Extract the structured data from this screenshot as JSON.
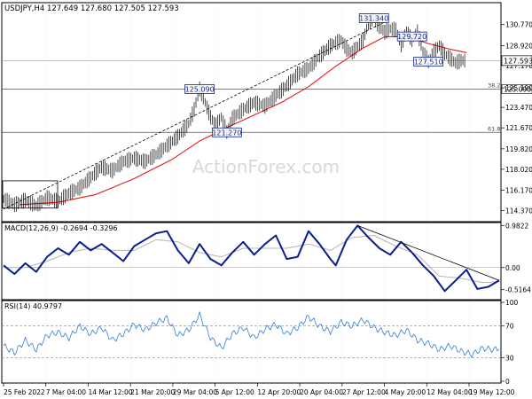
{
  "watermark": "ActionForex.com",
  "colors": {
    "price": "#000000",
    "ma": "#e41a1c",
    "trend": "#000000",
    "macd": "#0a1f8f",
    "signal": "#b4b4b4",
    "rsi": "#2f7ed8",
    "box": "#0a1f8f",
    "grid": "#c8c8c8"
  },
  "chart_data": [
    {
      "type": "line",
      "panel": "price",
      "header": "USDJPY,H4  127.649 127.680 127.505 127.593",
      "last_price_label": "127.593",
      "ylim": [
        113.4,
        132.7
      ],
      "y_ticks": [
        "130.770",
        "128.920",
        "127.170",
        "125.190",
        "123.470",
        "121.670",
        "119.820",
        "118.020",
        "116.170",
        "114.370"
      ],
      "x_ticks": [
        "25 Feb 2022",
        "7 Mar 04:00",
        "14 Mar 12:00",
        "21 Mar 20:00",
        "29 Mar 04:00",
        "5 Apr 12:00",
        "12 Apr 20:00",
        "20 Apr 04:00",
        "27 Apr 12:00",
        "4 May 20:00",
        "12 May 04:00",
        "19 May 12:00"
      ],
      "series": [
        {
          "name": "USDJPY",
          "values": [
            [
              0,
              115.4
            ],
            [
              2,
              114.9
            ],
            [
              4,
              115.3
            ],
            [
              6,
              114.8
            ],
            [
              8,
              115.5
            ],
            [
              10,
              115.2
            ],
            [
              12,
              115.9
            ],
            [
              14,
              116.4
            ],
            [
              16,
              117.3
            ],
            [
              18,
              118.2
            ],
            [
              20,
              117.9
            ],
            [
              22,
              118.7
            ],
            [
              24,
              119.0
            ],
            [
              26,
              118.7
            ],
            [
              28,
              119.3
            ],
            [
              30,
              120.1
            ],
            [
              32,
              120.9
            ],
            [
              34,
              122.0
            ],
            [
              35,
              123.3
            ],
            [
              36,
              125.09
            ],
            [
              37,
              123.9
            ],
            [
              38,
              122.6
            ],
            [
              39,
              121.9
            ],
            [
              40,
              122.6
            ],
            [
              41,
              121.3
            ],
            [
              42,
              122.5
            ],
            [
              44,
              123.3
            ],
            [
              46,
              123.9
            ],
            [
              48,
              123.6
            ],
            [
              50,
              124.5
            ],
            [
              52,
              125.4
            ],
            [
              54,
              126.4
            ],
            [
              56,
              126.9
            ],
            [
              58,
              128.0
            ],
            [
              60,
              128.9
            ],
            [
              62,
              129.4
            ],
            [
              63,
              128.6
            ],
            [
              64,
              128.3
            ],
            [
              66,
              129.4
            ],
            [
              67,
              130.9
            ],
            [
              68,
              131.34
            ],
            [
              69,
              130.6
            ],
            [
              70,
              130.1
            ],
            [
              71,
              130.4
            ],
            [
              72,
              130.3
            ],
            [
              73,
              129.0
            ],
            [
              74,
              130.2
            ],
            [
              75,
              129.4
            ],
            [
              76,
              130.1
            ],
            [
              77,
              128.4
            ],
            [
              78,
              127.51
            ],
            [
              79,
              128.4
            ],
            [
              80,
              128.9
            ],
            [
              81,
              128.2
            ],
            [
              82,
              127.8
            ],
            [
              83,
              127.4
            ],
            [
              84,
              127.6
            ],
            [
              85,
              127.59
            ]
          ]
        },
        {
          "name": "MA",
          "values": [
            [
              3,
              114.9
            ],
            [
              10,
              115.1
            ],
            [
              17,
              115.8
            ],
            [
              24,
              117.2
            ],
            [
              31,
              118.9
            ],
            [
              36,
              120.5
            ],
            [
              41,
              121.7
            ],
            [
              46,
              122.8
            ],
            [
              51,
              123.9
            ],
            [
              56,
              125.3
            ],
            [
              61,
              127.1
            ],
            [
              66,
              128.7
            ],
            [
              70,
              129.7
            ],
            [
              74,
              129.7
            ],
            [
              78,
              129.1
            ],
            [
              82,
              128.6
            ],
            [
              85,
              128.3
            ]
          ]
        },
        {
          "name": "Trendline",
          "values": [
            [
              0,
              114.5
            ],
            [
              70,
              131.0
            ]
          ]
        }
      ],
      "annotations": [
        {
          "label": "125.090",
          "x": 36,
          "y": 125.09
        },
        {
          "label": "121.270",
          "x": 41,
          "y": 121.27
        },
        {
          "label": "131.340",
          "x": 68,
          "y": 131.34
        },
        {
          "label": "129.720",
          "x": 75,
          "y": 129.72
        },
        {
          "label": "127.510",
          "x": 78,
          "y": 127.51
        }
      ],
      "levels": [
        {
          "label": "38.2",
          "value": 125.09,
          "tag": "125.090"
        },
        {
          "label": "61.8",
          "value": 121.27
        }
      ]
    },
    {
      "type": "line",
      "panel": "macd",
      "title": "MACD(12,26,9) -0.2694 -0.3296",
      "ylim": [
        -0.75,
        1.05
      ],
      "y_ticks": [
        "0.9822",
        "0.00",
        "-0.5164"
      ],
      "series": [
        {
          "name": "MACD",
          "values": [
            [
              0,
              0.05
            ],
            [
              2,
              -0.15
            ],
            [
              4,
              0.1
            ],
            [
              6,
              -0.1
            ],
            [
              8,
              0.25
            ],
            [
              10,
              0.45
            ],
            [
              12,
              0.3
            ],
            [
              14,
              0.6
            ],
            [
              16,
              0.4
            ],
            [
              18,
              0.55
            ],
            [
              20,
              0.35
            ],
            [
              22,
              0.15
            ],
            [
              24,
              0.5
            ],
            [
              26,
              0.65
            ],
            [
              28,
              0.8
            ],
            [
              30,
              0.85
            ],
            [
              32,
              0.4
            ],
            [
              34,
              0.1
            ],
            [
              36,
              0.55
            ],
            [
              38,
              0.2
            ],
            [
              40,
              0.05
            ],
            [
              42,
              0.35
            ],
            [
              44,
              0.6
            ],
            [
              46,
              0.3
            ],
            [
              48,
              0.55
            ],
            [
              50,
              0.75
            ],
            [
              52,
              0.2
            ],
            [
              54,
              0.25
            ],
            [
              56,
              0.85
            ],
            [
              58,
              0.55
            ],
            [
              60,
              0.2
            ],
            [
              61,
              0.05
            ],
            [
              63,
              0.65
            ],
            [
              65,
              0.98
            ],
            [
              67,
              0.7
            ],
            [
              69,
              0.45
            ],
            [
              71,
              0.3
            ],
            [
              73,
              0.6
            ],
            [
              75,
              0.35
            ],
            [
              77,
              0.05
            ],
            [
              79,
              -0.2
            ],
            [
              81,
              -0.55
            ],
            [
              83,
              -0.3
            ],
            [
              85,
              -0.05
            ],
            [
              87,
              -0.5
            ],
            [
              89,
              -0.45
            ],
            [
              91,
              -0.3
            ]
          ]
        },
        {
          "name": "Signal",
          "values": [
            [
              0,
              0.0
            ],
            [
              4,
              0.0
            ],
            [
              8,
              0.15
            ],
            [
              12,
              0.35
            ],
            [
              16,
              0.45
            ],
            [
              20,
              0.4
            ],
            [
              24,
              0.4
            ],
            [
              28,
              0.65
            ],
            [
              32,
              0.6
            ],
            [
              36,
              0.35
            ],
            [
              40,
              0.25
            ],
            [
              44,
              0.45
            ],
            [
              48,
              0.45
            ],
            [
              52,
              0.45
            ],
            [
              56,
              0.55
            ],
            [
              60,
              0.4
            ],
            [
              64,
              0.7
            ],
            [
              68,
              0.75
            ],
            [
              72,
              0.5
            ],
            [
              76,
              0.3
            ],
            [
              80,
              -0.2
            ],
            [
              84,
              -0.25
            ],
            [
              88,
              -0.35
            ],
            [
              91,
              -0.33
            ]
          ]
        },
        {
          "name": "Trendline",
          "values": [
            [
              65,
              0.98
            ],
            [
              91,
              -0.3
            ]
          ]
        }
      ]
    },
    {
      "type": "line",
      "panel": "rsi",
      "title": "RSI(14) 40.9797",
      "ylim": [
        0,
        100
      ],
      "y_ticks": [
        "100",
        "70",
        "30",
        "0"
      ],
      "levels": [
        70,
        30
      ],
      "series": [
        {
          "name": "RSI",
          "values": [
            [
              0,
              45
            ],
            [
              2,
              36
            ],
            [
              4,
              52
            ],
            [
              6,
              40
            ],
            [
              8,
              58
            ],
            [
              10,
              62
            ],
            [
              12,
              55
            ],
            [
              14,
              70
            ],
            [
              16,
              60
            ],
            [
              18,
              68
            ],
            [
              20,
              52
            ],
            [
              22,
              60
            ],
            [
              24,
              72
            ],
            [
              26,
              65
            ],
            [
              28,
              74
            ],
            [
              30,
              80
            ],
            [
              32,
              58
            ],
            [
              34,
              65
            ],
            [
              36,
              84
            ],
            [
              38,
              55
            ],
            [
              40,
              42
            ],
            [
              42,
              60
            ],
            [
              44,
              68
            ],
            [
              46,
              55
            ],
            [
              48,
              66
            ],
            [
              50,
              72
            ],
            [
              52,
              60
            ],
            [
              54,
              68
            ],
            [
              56,
              82
            ],
            [
              58,
              70
            ],
            [
              60,
              63
            ],
            [
              62,
              75
            ],
            [
              64,
              70
            ],
            [
              66,
              78
            ],
            [
              68,
              68
            ],
            [
              70,
              62
            ],
            [
              72,
              58
            ],
            [
              74,
              65
            ],
            [
              76,
              52
            ],
            [
              78,
              48
            ],
            [
              80,
              40
            ],
            [
              82,
              45
            ],
            [
              84,
              38
            ],
            [
              86,
              34
            ],
            [
              88,
              42
            ],
            [
              90,
              40
            ],
            [
              91,
              41
            ]
          ]
        }
      ]
    }
  ]
}
